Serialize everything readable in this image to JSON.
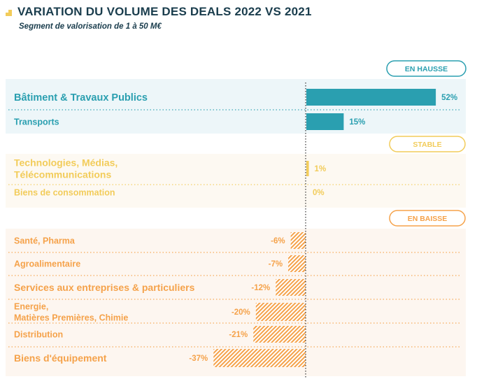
{
  "header": {
    "title": "VARIATION DU VOLUME DES DEALS 2022 VS 2021",
    "subtitle": "Segment de valorisation de 1 à 50 M€"
  },
  "colors": {
    "up": "#2a9fb0",
    "up_bg": "#edf6f9",
    "stable": "#f2cc5a",
    "stable_bg": "#fdf9f2",
    "down": "#f5a24a",
    "down_bg": "#fdf6f0",
    "title": "#1a3d4d",
    "mark": "#f2cc5a"
  },
  "chart_data": {
    "type": "bar",
    "orientation": "horizontal",
    "unit": "%",
    "groups": [
      {
        "label": "EN HAUSSE",
        "color": "up",
        "categories": [
          {
            "name": "Bâtiment & Travaux Publics",
            "value": 52,
            "display": "52%"
          },
          {
            "name": "Transports",
            "value": 15,
            "display": "15%"
          }
        ]
      },
      {
        "label": "STABLE",
        "color": "stable",
        "categories": [
          {
            "name": "Technologies, Médias,\nTélécommunications",
            "value": 1,
            "display": "1%"
          },
          {
            "name": "Biens de consommation",
            "value": 0,
            "display": "0%"
          }
        ]
      },
      {
        "label": "EN BAISSE",
        "color": "down",
        "categories": [
          {
            "name": "Santé, Pharma",
            "value": -6,
            "display": "-6%"
          },
          {
            "name": "Agroalimentaire",
            "value": -7,
            "display": "-7%"
          },
          {
            "name": "Services aux  entreprises & particuliers",
            "value": -12,
            "display": "-12%"
          },
          {
            "name": "Energie,\nMatières Premières, Chimie",
            "value": -20,
            "display": "-20%"
          },
          {
            "name": "Distribution",
            "value": -21,
            "display": "-21%"
          },
          {
            "name": "Biens d'équipement",
            "value": -37,
            "display": "-37%"
          }
        ]
      }
    ]
  }
}
